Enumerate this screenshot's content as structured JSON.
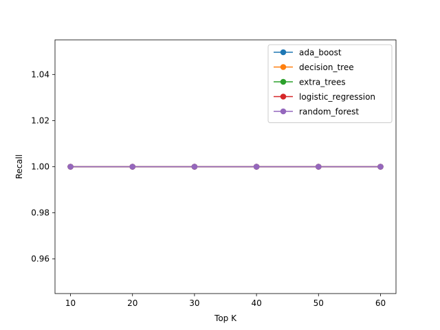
{
  "chart_data": {
    "type": "line",
    "title": "",
    "xlabel": "Top K",
    "ylabel": "Recall",
    "x": [
      10,
      20,
      30,
      40,
      50,
      60
    ],
    "xlim": [
      7.5,
      62.5
    ],
    "ylim": [
      0.945,
      1.055
    ],
    "xticks": [
      10,
      20,
      30,
      40,
      50,
      60
    ],
    "yticks": [
      0.96,
      0.98,
      1.0,
      1.02,
      1.04
    ],
    "ytick_labels": [
      "0.96",
      "0.98",
      "1.00",
      "1.02",
      "1.04"
    ],
    "grid": false,
    "legend_position": "top-right",
    "marker": "circle",
    "series": [
      {
        "name": "ada_boost",
        "color": "#1f77b4",
        "values": [
          1.0,
          1.0,
          1.0,
          1.0,
          1.0,
          1.0
        ]
      },
      {
        "name": "decision_tree",
        "color": "#ff7f0e",
        "values": [
          1.0,
          1.0,
          1.0,
          1.0,
          1.0,
          1.0
        ]
      },
      {
        "name": "extra_trees",
        "color": "#2ca02c",
        "values": [
          1.0,
          1.0,
          1.0,
          1.0,
          1.0,
          1.0
        ]
      },
      {
        "name": "logistic_regression",
        "color": "#d62728",
        "values": [
          1.0,
          1.0,
          1.0,
          1.0,
          1.0,
          1.0
        ]
      },
      {
        "name": "random_forest",
        "color": "#9467bd",
        "values": [
          1.0,
          1.0,
          1.0,
          1.0,
          1.0,
          1.0
        ]
      }
    ]
  }
}
